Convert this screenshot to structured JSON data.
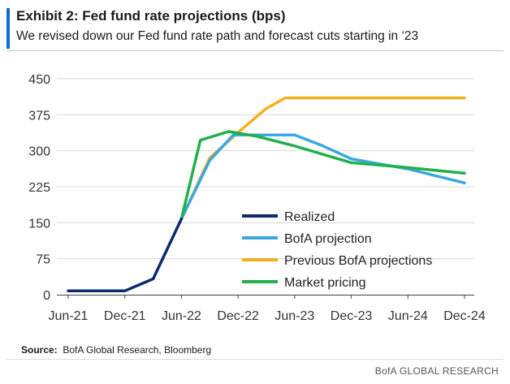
{
  "header": {
    "title": "Exhibit 2: Fed fund rate projections (bps)",
    "subtitle": "We revised down our Fed fund rate path and forecast cuts starting in ‘23",
    "accent_color": "#0a6ed1"
  },
  "source": {
    "label": "Source:",
    "text": "BofA Global Research, Bloomberg"
  },
  "brand": "BofA GLOBAL RESEARCH",
  "chart_data": {
    "type": "line",
    "title": "Exhibit 2: Fed fund rate projections (bps)",
    "ylim": [
      0,
      450
    ],
    "yticks": [
      0,
      75,
      150,
      225,
      300,
      375,
      450
    ],
    "xlim": [
      0,
      42
    ],
    "xticks": [
      {
        "label": "Jun-21",
        "x": 0
      },
      {
        "label": "Dec-21",
        "x": 6
      },
      {
        "label": "Jun-22",
        "x": 12
      },
      {
        "label": "Dec-22",
        "x": 18
      },
      {
        "label": "Jun-23",
        "x": 24
      },
      {
        "label": "Dec-23",
        "x": 30
      },
      {
        "label": "Jun-24",
        "x": 36
      },
      {
        "label": "Dec-24",
        "x": 42
      }
    ],
    "grid": "horizontal",
    "legend_position": "center-right",
    "series": [
      {
        "name": "Previous BofA projections",
        "color": "#f2b01e",
        "points": [
          [
            12,
            158
          ],
          [
            15,
            285
          ],
          [
            18,
            338
          ],
          [
            21,
            388
          ],
          [
            23,
            410
          ],
          [
            27,
            410
          ],
          [
            30,
            410
          ],
          [
            36,
            410
          ],
          [
            42,
            410
          ]
        ]
      },
      {
        "name": "BofA projection",
        "color": "#3aa8e0",
        "points": [
          [
            12,
            158
          ],
          [
            15,
            280
          ],
          [
            17.5,
            333
          ],
          [
            21,
            333
          ],
          [
            24,
            333
          ],
          [
            27,
            310
          ],
          [
            30,
            283
          ],
          [
            36,
            262
          ],
          [
            42,
            233
          ]
        ]
      },
      {
        "name": "Market pricing",
        "color": "#22b04b",
        "points": [
          [
            12,
            158
          ],
          [
            14,
            322
          ],
          [
            17,
            340
          ],
          [
            20,
            330
          ],
          [
            24,
            310
          ],
          [
            30,
            275
          ],
          [
            36,
            265
          ],
          [
            42,
            253
          ]
        ]
      },
      {
        "name": "Realized",
        "color": "#0c2a6e",
        "points": [
          [
            0,
            8
          ],
          [
            3,
            8
          ],
          [
            6,
            8
          ],
          [
            9,
            33
          ],
          [
            12,
            158
          ]
        ]
      }
    ],
    "legend_order": [
      "Realized",
      "BofA projection",
      "Previous BofA projections",
      "Market pricing"
    ]
  }
}
